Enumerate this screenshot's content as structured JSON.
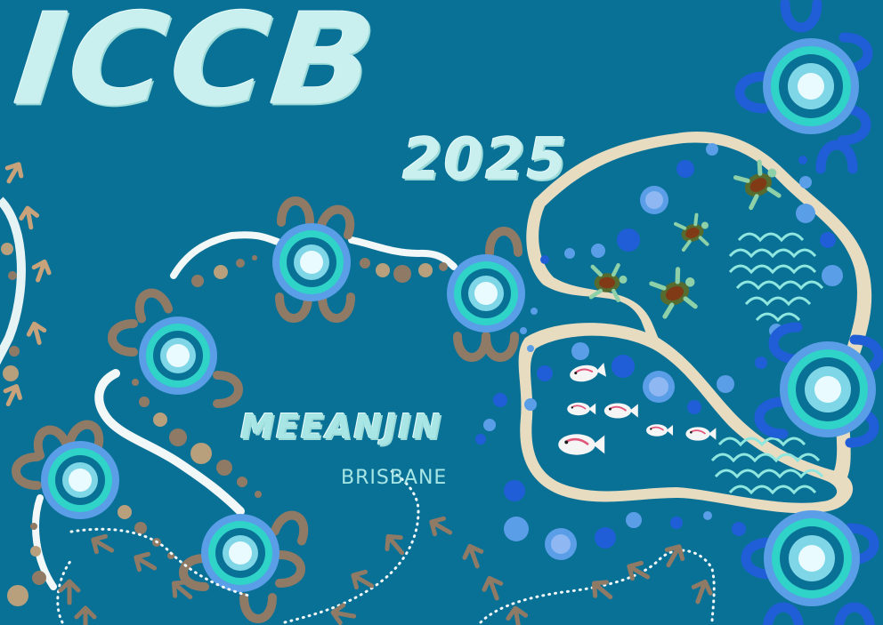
{
  "title": "ICCB",
  "year": "2025",
  "place": "MEEANJIN",
  "city": "BRISBANE",
  "colors": {
    "background": "#0a7196",
    "title_text": "#c9efef",
    "sand": "#e7dcc0",
    "brown": "#8f7a66",
    "blue_light": "#5a9ee8",
    "blue_dark": "#1f5ed6",
    "cyan": "#2fd3c7",
    "turtle": "#556b2f",
    "fish": "#f5f5f5"
  },
  "icons": [
    "concentric-circle-motif",
    "u-shape-motif",
    "turtle-icon",
    "fish-icon",
    "footprint-arrow-icon",
    "scale-pattern-icon"
  ]
}
